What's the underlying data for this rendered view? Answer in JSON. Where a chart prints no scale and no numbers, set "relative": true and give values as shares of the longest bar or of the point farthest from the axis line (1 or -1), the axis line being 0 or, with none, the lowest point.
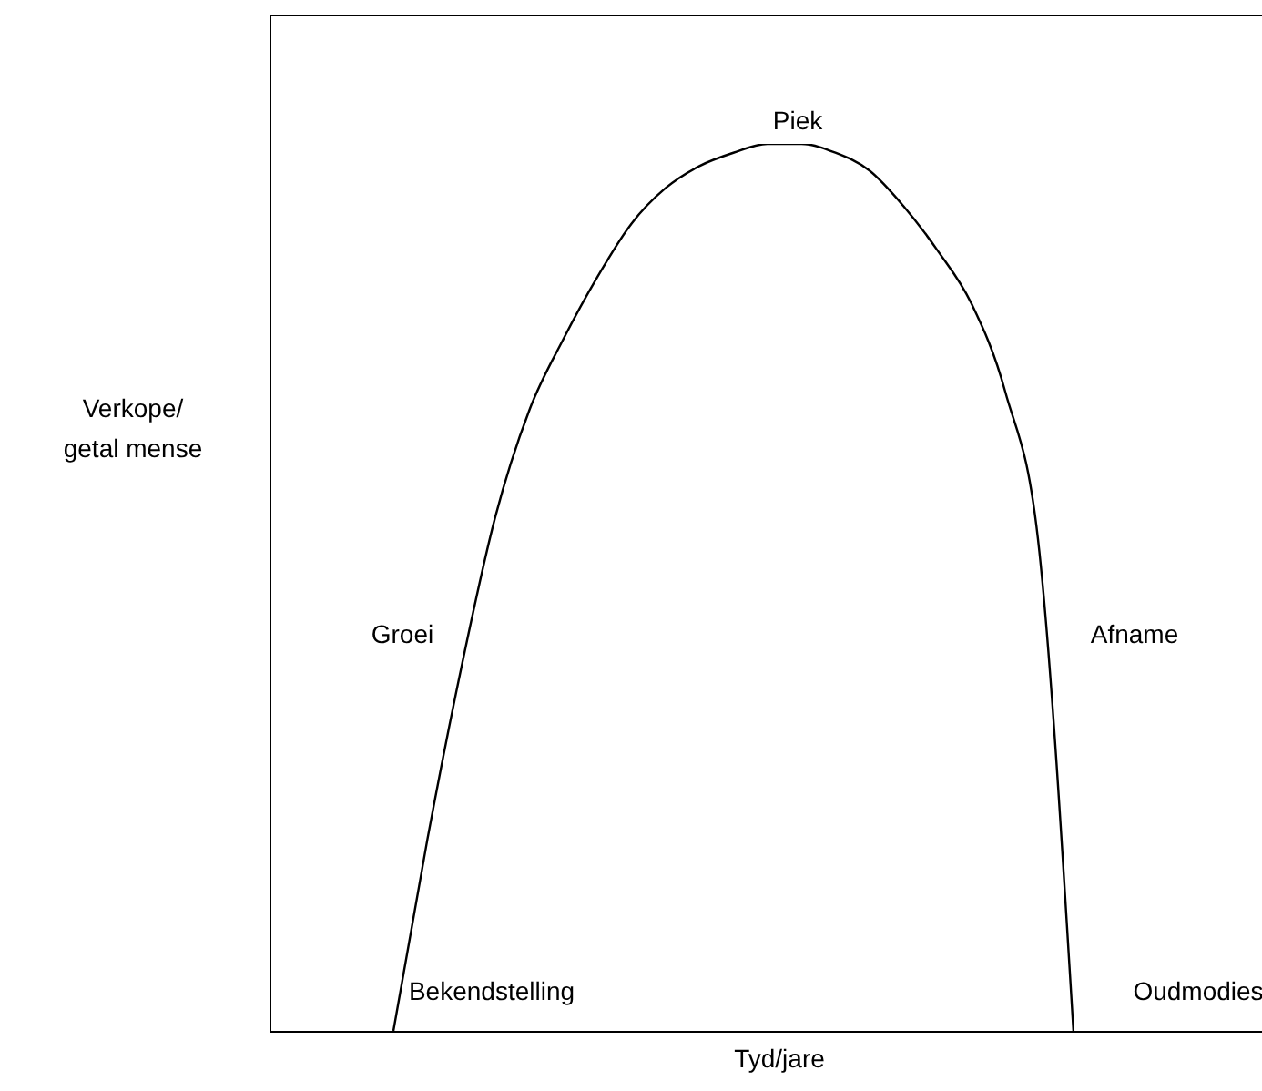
{
  "chart_data": {
    "type": "line",
    "relative": true,
    "xlabel": "Tyd/jare",
    "ylabel": "Verkope/\ngetal mense",
    "marker": "none",
    "annotations": [
      "Piek",
      "Groei",
      "Afname",
      "Bekendstelling",
      "Oudmodies"
    ],
    "categories": [
      null,
      null,
      null,
      null,
      null,
      null,
      null,
      null,
      null,
      null,
      null,
      null,
      null,
      null,
      null,
      null,
      null,
      null,
      null,
      null,
      null,
      null,
      null,
      null,
      null,
      null,
      null,
      null,
      null,
      null
    ],
    "series": [
      {
        "color": "#000000",
        "values": [
          null,
          null,
          null,
          null,
          0,
          0.216,
          0.41,
          0.58,
          0.7,
          0.78,
          0.85,
          0.91,
          0.95,
          0.975,
          0.99,
          1,
          1,
          0.99,
          0.97,
          0.93,
          0.88,
          0.82,
          0.72,
          0.54,
          0,
          null,
          null,
          null,
          null,
          null
        ]
      }
    ]
  }
}
